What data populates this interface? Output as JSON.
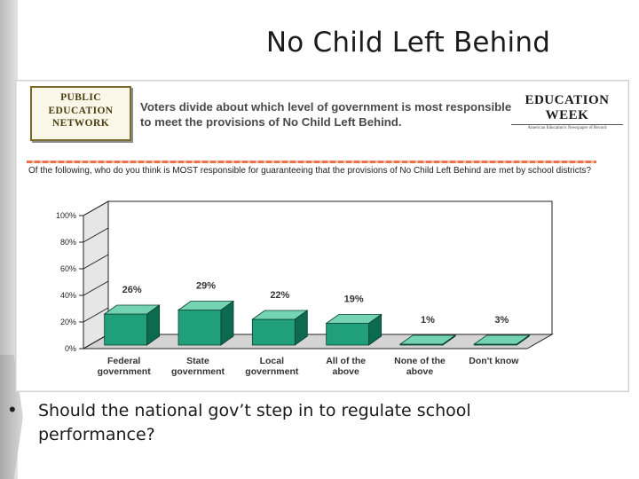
{
  "slide": {
    "title": "No Child Left Behind",
    "bullet_text": "Should the national gov’t step in to regulate school performance?"
  },
  "logos": {
    "left_lines": [
      "PUBLIC",
      "EDUCATION",
      "NETWORK"
    ],
    "right_name": "EDUCATION WEEK",
    "right_tagline": "American Education's Newspaper of Record"
  },
  "colors": {
    "bar_front": "#1fa07a",
    "bar_top": "#74d3b2",
    "bar_side": "#0c6a4f",
    "floor": "#d4d4d4",
    "back_wall": "#ffffff",
    "accent_divider": "#e8734a"
  },
  "chart_data": {
    "type": "bar",
    "title": "Voters divide about which level of government is most responsible to meet the provisions of No Child Left Behind.",
    "subtitle": "Of the following, who do you think is MOST responsible for guaranteeing that the provisions of No Child Left Behind are met by school districts?",
    "categories": [
      [
        "Federal",
        "government"
      ],
      [
        "State",
        "government"
      ],
      [
        "Local",
        "government"
      ],
      [
        "All of the",
        "above"
      ],
      [
        "None of the",
        "above"
      ],
      [
        "Don't know"
      ]
    ],
    "values": [
      26,
      29,
      22,
      19,
      1,
      3
    ],
    "data_labels": [
      "26%",
      "29%",
      "22%",
      "19%",
      "1%",
      "3%"
    ],
    "ytick_labels": [
      "0%",
      "20%",
      "40%",
      "60%",
      "80%",
      "100%"
    ],
    "ylim": [
      0,
      100
    ],
    "xlabel": "",
    "ylabel": "",
    "grid": false,
    "legend": "none",
    "style": "3d"
  }
}
